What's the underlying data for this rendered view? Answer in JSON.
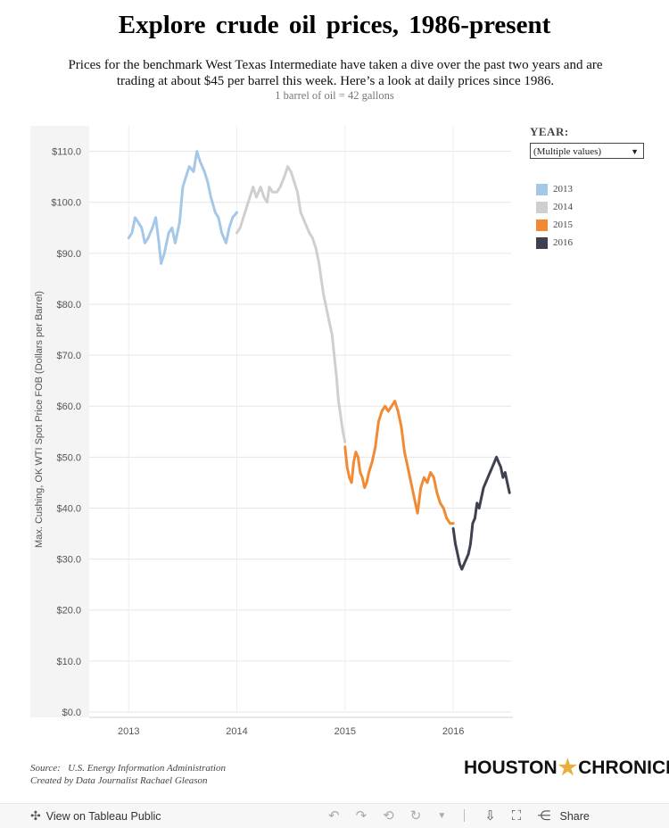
{
  "header": {
    "title": "Explore crude oil prices, 1986-present",
    "subtitle": "Prices for the benchmark West Texas Intermediate have taken a dive over the past two years and are trading at about $45 per barrel this week. Here’s a look at daily prices since 1986.",
    "note": "1 barrel of oil = 42 gallons"
  },
  "filter": {
    "title": "YEAR:",
    "selected": "(Multiple values)"
  },
  "legend": {
    "items": [
      {
        "label": "2013",
        "color": "#a5c8e8"
      },
      {
        "label": "2014",
        "color": "#cfcfcf"
      },
      {
        "label": "2015",
        "color": "#f28a33"
      },
      {
        "label": "2016",
        "color": "#3d4150"
      }
    ]
  },
  "chart_data": {
    "type": "line",
    "ylabel": "Max. Cushing, OK WTI Spot Price FOB (Dollars per Barrel)",
    "xlabel": "",
    "ylim": [
      0,
      115
    ],
    "xlim": [
      2012.8,
      2016.7
    ],
    "y_ticks": [
      "$110.0",
      "$100.0",
      "$90.0",
      "$80.0",
      "$70.0",
      "$60.0",
      "$50.0",
      "$40.0",
      "$30.0",
      "$20.0",
      "$10.0",
      "$0.0"
    ],
    "y_tick_values": [
      110,
      100,
      90,
      80,
      70,
      60,
      50,
      40,
      30,
      20,
      10,
      0
    ],
    "x_ticks": [
      "2013",
      "2014",
      "2015",
      "2016"
    ],
    "x_tick_values": [
      2013,
      2014,
      2015,
      2016
    ],
    "grid": true,
    "legend_position": "right",
    "series": [
      {
        "name": "2013",
        "color": "#a5c8e8",
        "points": [
          [
            2013.0,
            93
          ],
          [
            2013.03,
            94
          ],
          [
            2013.06,
            97
          ],
          [
            2013.09,
            96
          ],
          [
            2013.12,
            95
          ],
          [
            2013.15,
            92
          ],
          [
            2013.18,
            93
          ],
          [
            2013.22,
            95
          ],
          [
            2013.25,
            97
          ],
          [
            2013.28,
            92
          ],
          [
            2013.3,
            88
          ],
          [
            2013.33,
            90
          ],
          [
            2013.37,
            94
          ],
          [
            2013.4,
            95
          ],
          [
            2013.43,
            92
          ],
          [
            2013.47,
            96
          ],
          [
            2013.5,
            103
          ],
          [
            2013.53,
            105
          ],
          [
            2013.56,
            107
          ],
          [
            2013.6,
            106
          ],
          [
            2013.63,
            110
          ],
          [
            2013.66,
            108
          ],
          [
            2013.7,
            106
          ],
          [
            2013.73,
            104
          ],
          [
            2013.76,
            101
          ],
          [
            2013.8,
            98
          ],
          [
            2013.83,
            97
          ],
          [
            2013.86,
            94
          ],
          [
            2013.9,
            92
          ],
          [
            2013.93,
            95
          ],
          [
            2013.96,
            97
          ],
          [
            2014.0,
            98
          ]
        ]
      },
      {
        "name": "2014",
        "color": "#cfcfcf",
        "points": [
          [
            2014.0,
            94
          ],
          [
            2014.03,
            95
          ],
          [
            2014.06,
            97
          ],
          [
            2014.09,
            99
          ],
          [
            2014.12,
            101
          ],
          [
            2014.15,
            103
          ],
          [
            2014.18,
            101
          ],
          [
            2014.22,
            103
          ],
          [
            2014.25,
            101
          ],
          [
            2014.28,
            100
          ],
          [
            2014.3,
            103
          ],
          [
            2014.33,
            102
          ],
          [
            2014.37,
            102
          ],
          [
            2014.4,
            103
          ],
          [
            2014.44,
            105
          ],
          [
            2014.47,
            107
          ],
          [
            2014.5,
            106
          ],
          [
            2014.53,
            104
          ],
          [
            2014.56,
            102
          ],
          [
            2014.59,
            98
          ],
          [
            2014.63,
            96
          ],
          [
            2014.67,
            94
          ],
          [
            2014.7,
            93
          ],
          [
            2014.73,
            91
          ],
          [
            2014.76,
            88
          ],
          [
            2014.78,
            85
          ],
          [
            2014.8,
            82
          ],
          [
            2014.83,
            79
          ],
          [
            2014.86,
            76
          ],
          [
            2014.88,
            74
          ],
          [
            2014.9,
            70
          ],
          [
            2014.92,
            66
          ],
          [
            2014.94,
            61
          ],
          [
            2014.96,
            58
          ],
          [
            2014.98,
            55
          ],
          [
            2015.0,
            53
          ]
        ]
      },
      {
        "name": "2015",
        "color": "#f28a33",
        "points": [
          [
            2015.0,
            52
          ],
          [
            2015.02,
            48
          ],
          [
            2015.04,
            46
          ],
          [
            2015.06,
            45
          ],
          [
            2015.08,
            49
          ],
          [
            2015.1,
            51
          ],
          [
            2015.12,
            50
          ],
          [
            2015.14,
            47
          ],
          [
            2015.16,
            46
          ],
          [
            2015.18,
            44
          ],
          [
            2015.2,
            45
          ],
          [
            2015.22,
            47
          ],
          [
            2015.25,
            49
          ],
          [
            2015.28,
            52
          ],
          [
            2015.31,
            57
          ],
          [
            2015.34,
            59
          ],
          [
            2015.37,
            60
          ],
          [
            2015.4,
            59
          ],
          [
            2015.43,
            60
          ],
          [
            2015.46,
            61
          ],
          [
            2015.49,
            59
          ],
          [
            2015.52,
            56
          ],
          [
            2015.55,
            51
          ],
          [
            2015.58,
            48
          ],
          [
            2015.61,
            45
          ],
          [
            2015.64,
            42
          ],
          [
            2015.67,
            39
          ],
          [
            2015.7,
            44
          ],
          [
            2015.73,
            46
          ],
          [
            2015.76,
            45
          ],
          [
            2015.79,
            47
          ],
          [
            2015.82,
            46
          ],
          [
            2015.85,
            43
          ],
          [
            2015.88,
            41
          ],
          [
            2015.91,
            40
          ],
          [
            2015.94,
            38
          ],
          [
            2015.97,
            37
          ],
          [
            2016.0,
            37
          ]
        ]
      },
      {
        "name": "2016",
        "color": "#3d4150",
        "points": [
          [
            2016.0,
            36
          ],
          [
            2016.02,
            33
          ],
          [
            2016.04,
            31
          ],
          [
            2016.06,
            29
          ],
          [
            2016.08,
            28
          ],
          [
            2016.1,
            29
          ],
          [
            2016.12,
            30
          ],
          [
            2016.14,
            31
          ],
          [
            2016.16,
            33
          ],
          [
            2016.18,
            37
          ],
          [
            2016.2,
            38
          ],
          [
            2016.22,
            41
          ],
          [
            2016.24,
            40
          ],
          [
            2016.26,
            42
          ],
          [
            2016.28,
            44
          ],
          [
            2016.3,
            45
          ],
          [
            2016.32,
            46
          ],
          [
            2016.34,
            47
          ],
          [
            2016.36,
            48
          ],
          [
            2016.38,
            49
          ],
          [
            2016.4,
            50
          ],
          [
            2016.42,
            49
          ],
          [
            2016.44,
            48
          ],
          [
            2016.46,
            46
          ],
          [
            2016.48,
            47
          ],
          [
            2016.5,
            45
          ],
          [
            2016.52,
            43
          ]
        ]
      }
    ]
  },
  "footer": {
    "source_label": "Source:",
    "source_text": "U.S. Energy Information Administration",
    "credit": "Created by Data Journalist Rachael Gleason",
    "logo_left": "HOUSTON",
    "logo_right": "CHRONICLE"
  },
  "toolbar": {
    "view_label": "View on Tableau Public",
    "share_label": "Share"
  }
}
